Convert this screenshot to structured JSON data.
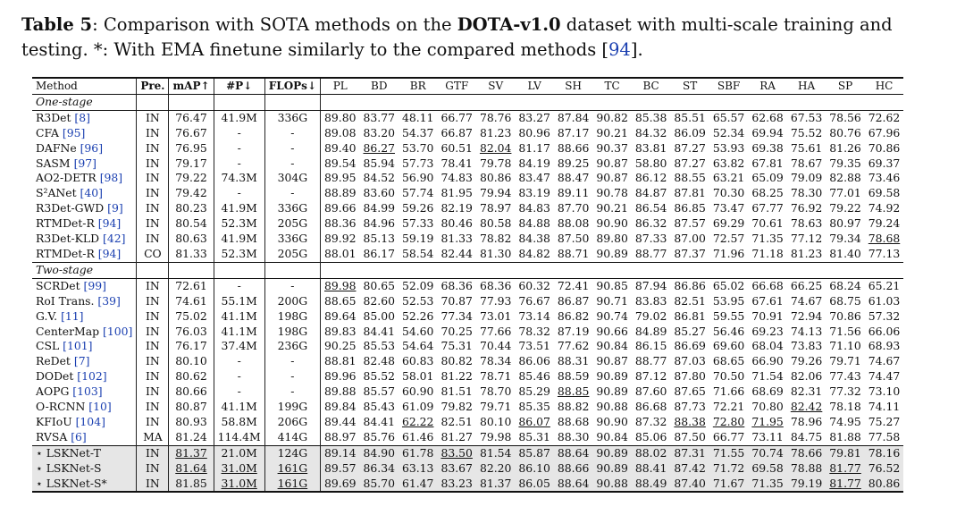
{
  "caption": {
    "label": "Table 5",
    "text_before_dataset": ": Comparison with SOTA methods on the ",
    "dataset": "DOTA-v1.0",
    "text_after_dataset": " dataset with multi-scale training and testing. *: With EMA finetune similarly to the compared methods [",
    "ref": "94",
    "text_end": "]."
  },
  "headers": [
    "Method",
    "Pre.",
    "mAP↑",
    "#P↓",
    "FLOPs↓",
    "PL",
    "BD",
    "BR",
    "GTF",
    "SV",
    "LV",
    "SH",
    "TC",
    "BC",
    "ST",
    "SBF",
    "RA",
    "HA",
    "SP",
    "HC"
  ],
  "sections": [
    {
      "title": "One-stage",
      "rows": [
        {
          "name": "R3Det ",
          "ref": "[8]",
          "pre": "IN",
          "map": "76.47",
          "params": "41.9M",
          "flops": "336G",
          "cls": [
            "89.80",
            "83.77",
            "48.11",
            "66.77",
            "78.76",
            "83.27",
            "87.84",
            "90.82",
            "85.38",
            "85.51",
            "65.57",
            "62.68",
            "67.53",
            "78.56",
            "72.62"
          ]
        },
        {
          "name": "CFA ",
          "ref": "[95]",
          "pre": "IN",
          "map": "76.67",
          "params": "-",
          "flops": "-",
          "cls": [
            "89.08",
            "83.20",
            "54.37",
            "66.87",
            "81.23",
            "80.96",
            "87.17",
            "90.21",
            "84.32",
            "86.09",
            "52.34",
            "69.94",
            "75.52",
            "80.76",
            "67.96"
          ]
        },
        {
          "name": "DAFNe ",
          "ref": "[96]",
          "pre": "IN",
          "map": "76.95",
          "params": "-",
          "flops": "-",
          "cls": [
            "89.40",
            "86.27",
            "53.70",
            "60.51",
            "82.04",
            "81.17",
            "88.66",
            "90.37",
            "83.81",
            "87.27",
            "53.93",
            "69.38",
            "75.61",
            "81.26",
            "70.86"
          ],
          "u": [
            1,
            4
          ]
        },
        {
          "name": "SASM ",
          "ref": "[97]",
          "pre": "IN",
          "map": "79.17",
          "params": "-",
          "flops": "-",
          "cls": [
            "89.54",
            "85.94",
            "57.73",
            "78.41",
            "79.78",
            "84.19",
            "89.25",
            "90.87",
            "58.80",
            "87.27",
            "63.82",
            "67.81",
            "78.67",
            "79.35",
            "69.37"
          ]
        },
        {
          "name": "AO2-DETR ",
          "ref": "[98]",
          "pre": "IN",
          "map": "79.22",
          "params": "74.3M",
          "flops": "304G",
          "cls": [
            "89.95",
            "84.52",
            "56.90",
            "74.83",
            "80.86",
            "83.47",
            "88.47",
            "90.87",
            "86.12",
            "88.55",
            "63.21",
            "65.09",
            "79.09",
            "82.88",
            "73.46"
          ],
          "b": [
            9,
            13
          ]
        },
        {
          "name": "S²ANet ",
          "ref": "[40]",
          "pre": "IN",
          "map": "79.42",
          "params": "-",
          "flops": "-",
          "cls": [
            "88.89",
            "83.60",
            "57.74",
            "81.95",
            "79.94",
            "83.19",
            "89.11",
            "90.78",
            "84.87",
            "87.81",
            "70.30",
            "68.25",
            "78.30",
            "77.01",
            "69.58"
          ],
          "b": [
            6
          ]
        },
        {
          "name": "R3Det-GWD ",
          "ref": "[9]",
          "pre": "IN",
          "map": "80.23",
          "params": "41.9M",
          "flops": "336G",
          "cls": [
            "89.66",
            "84.99",
            "59.26",
            "82.19",
            "78.97",
            "84.83",
            "87.70",
            "90.21",
            "86.54",
            "86.85",
            "73.47",
            "67.77",
            "76.92",
            "79.22",
            "74.92"
          ],
          "b": [
            10
          ]
        },
        {
          "name": "RTMDet-R ",
          "ref": "[94]",
          "pre": "IN",
          "map": "80.54",
          "params": "52.3M",
          "flops": "205G",
          "cls": [
            "88.36",
            "84.96",
            "57.33",
            "80.46",
            "80.58",
            "84.88",
            "88.08",
            "90.90",
            "86.32",
            "87.57",
            "69.29",
            "70.61",
            "78.63",
            "80.97",
            "79.24"
          ],
          "b": [
            7,
            14
          ]
        },
        {
          "name": "R3Det-KLD ",
          "ref": "[42]",
          "pre": "IN",
          "map": "80.63",
          "params": "41.9M",
          "flops": "336G",
          "cls": [
            "89.92",
            "85.13",
            "59.19",
            "81.33",
            "78.82",
            "84.38",
            "87.50",
            "89.80",
            "87.33",
            "87.00",
            "72.57",
            "71.35",
            "77.12",
            "79.34",
            "78.68"
          ],
          "u": [
            14
          ]
        },
        {
          "name": "RTMDet-R ",
          "ref": "[94]",
          "pre": "CO",
          "map": "81.33",
          "params": "52.3M",
          "flops": "205G",
          "cls": [
            "88.01",
            "86.17",
            "58.54",
            "82.44",
            "81.30",
            "84.82",
            "88.71",
            "90.89",
            "88.77",
            "87.37",
            "71.96",
            "71.18",
            "81.23",
            "81.40",
            "77.13"
          ],
          "b": [
            8
          ]
        }
      ]
    },
    {
      "title": "Two-stage",
      "rows": [
        {
          "name": "SCRDet ",
          "ref": "[99]",
          "pre": "IN",
          "map": "72.61",
          "params": "-",
          "flops": "-",
          "cls": [
            "89.98",
            "80.65",
            "52.09",
            "68.36",
            "68.36",
            "60.32",
            "72.41",
            "90.85",
            "87.94",
            "86.86",
            "65.02",
            "66.68",
            "66.25",
            "68.24",
            "65.21"
          ],
          "u": [
            0
          ]
        },
        {
          "name": "RoI Trans. ",
          "ref": "[39]",
          "pre": "IN",
          "map": "74.61",
          "params": "55.1M",
          "flops": "200G",
          "cls": [
            "88.65",
            "82.60",
            "52.53",
            "70.87",
            "77.93",
            "76.67",
            "86.87",
            "90.71",
            "83.83",
            "82.51",
            "53.95",
            "67.61",
            "74.67",
            "68.75",
            "61.03"
          ]
        },
        {
          "name": "G.V. ",
          "ref": "[11]",
          "pre": "IN",
          "map": "75.02",
          "params": "41.1M",
          "flops": "198G",
          "cls": [
            "89.64",
            "85.00",
            "52.26",
            "77.34",
            "73.01",
            "73.14",
            "86.82",
            "90.74",
            "79.02",
            "86.81",
            "59.55",
            "70.91",
            "72.94",
            "70.86",
            "57.32"
          ]
        },
        {
          "name": "CenterMap ",
          "ref": "[100]",
          "pre": "IN",
          "map": "76.03",
          "params": "41.1M",
          "flops": "198G",
          "cls": [
            "89.83",
            "84.41",
            "54.60",
            "70.25",
            "77.66",
            "78.32",
            "87.19",
            "90.66",
            "84.89",
            "85.27",
            "56.46",
            "69.23",
            "74.13",
            "71.56",
            "66.06"
          ]
        },
        {
          "name": "CSL ",
          "ref": "[101]",
          "pre": "IN",
          "map": "76.17",
          "params": "37.4M",
          "flops": "236G",
          "cls": [
            "90.25",
            "85.53",
            "54.64",
            "75.31",
            "70.44",
            "73.51",
            "77.62",
            "90.84",
            "86.15",
            "86.69",
            "69.60",
            "68.04",
            "73.83",
            "71.10",
            "68.93"
          ],
          "b": [
            0
          ]
        },
        {
          "name": "ReDet ",
          "ref": "[7]",
          "pre": "IN",
          "map": "80.10",
          "params": "-",
          "flops": "-",
          "cls": [
            "88.81",
            "82.48",
            "60.83",
            "80.82",
            "78.34",
            "86.06",
            "88.31",
            "90.87",
            "88.77",
            "87.03",
            "68.65",
            "66.90",
            "79.26",
            "79.71",
            "74.67"
          ],
          "b": [
            8
          ]
        },
        {
          "name": "DODet ",
          "ref": "[102]",
          "pre": "IN",
          "map": "80.62",
          "params": "-",
          "flops": "-",
          "cls": [
            "89.96",
            "85.52",
            "58.01",
            "81.22",
            "78.71",
            "85.46",
            "88.59",
            "90.89",
            "87.12",
            "87.80",
            "70.50",
            "71.54",
            "82.06",
            "77.43",
            "74.47"
          ]
        },
        {
          "name": "AOPG ",
          "ref": "[103]",
          "pre": "IN",
          "map": "80.66",
          "params": "-",
          "flops": "-",
          "cls": [
            "89.88",
            "85.57",
            "60.90",
            "81.51",
            "78.70",
            "85.29",
            "88.85",
            "90.89",
            "87.60",
            "87.65",
            "71.66",
            "68.69",
            "82.31",
            "77.32",
            "73.10"
          ],
          "u": [
            6
          ]
        },
        {
          "name": "O-RCNN ",
          "ref": "[10]",
          "pre": "IN",
          "map": "80.87",
          "params": "41.1M",
          "flops": "199G",
          "cls": [
            "89.84",
            "85.43",
            "61.09",
            "79.82",
            "79.71",
            "85.35",
            "88.82",
            "90.88",
            "86.68",
            "87.73",
            "72.21",
            "70.80",
            "82.42",
            "78.18",
            "74.11"
          ],
          "u": [
            12
          ]
        },
        {
          "name": "KFIoU ",
          "ref": "[104]",
          "pre": "IN",
          "map": "80.93",
          "params": "58.8M",
          "flops": "206G",
          "cls": [
            "89.44",
            "84.41",
            "62.22",
            "82.51",
            "80.10",
            "86.07",
            "88.68",
            "90.90",
            "87.32",
            "88.38",
            "72.80",
            "71.95",
            "78.96",
            "74.95",
            "75.27"
          ],
          "u": [
            2,
            5,
            9,
            10,
            11
          ],
          "b": [
            7
          ]
        },
        {
          "name": "RVSA ",
          "ref": "[6]",
          "pre": "MA",
          "map": "81.24",
          "params": "114.4M",
          "flops": "414G",
          "cls": [
            "88.97",
            "85.76",
            "61.46",
            "81.27",
            "79.98",
            "85.31",
            "88.30",
            "90.84",
            "85.06",
            "87.50",
            "66.77",
            "73.11",
            "84.75",
            "81.88",
            "77.58"
          ],
          "b": [
            11,
            12
          ]
        }
      ]
    }
  ],
  "ours": [
    {
      "name": "⋆ LSKNet-T",
      "pre": "IN",
      "map": "81.37",
      "params": "21.0M",
      "flops": "124G",
      "mapStyle": "u",
      "paramStyle": "b",
      "flopStyle": "b",
      "cls": [
        "89.14",
        "84.90",
        "61.78",
        "83.50",
        "81.54",
        "85.87",
        "88.64",
        "90.89",
        "88.02",
        "87.31",
        "71.55",
        "70.74",
        "78.66",
        "79.81",
        "78.16"
      ],
      "u": [
        3
      ]
    },
    {
      "name": "⋆ LSKNet-S",
      "pre": "IN",
      "map": "81.64",
      "params": "31.0M",
      "flops": "161G",
      "mapStyle": "u",
      "paramStyle": "u",
      "flopStyle": "u",
      "cls": [
        "89.57",
        "86.34",
        "63.13",
        "83.67",
        "82.20",
        "86.10",
        "88.66",
        "90.89",
        "88.41",
        "87.42",
        "71.72",
        "69.58",
        "78.88",
        "81.77",
        "76.52"
      ],
      "b": [
        1,
        2,
        3,
        4,
        5
      ],
      "u": [
        13
      ]
    },
    {
      "name": "⋆ LSKNet-S*",
      "pre": "IN",
      "map": "81.85",
      "params": "31.0M",
      "flops": "161G",
      "mapStyle": "b",
      "paramStyle": "u",
      "flopStyle": "u",
      "cls": [
        "89.69",
        "85.70",
        "61.47",
        "83.23",
        "81.37",
        "86.05",
        "88.64",
        "90.88",
        "88.49",
        "87.40",
        "71.67",
        "71.35",
        "79.19",
        "81.77",
        "80.86"
      ],
      "u": [
        13
      ],
      "b": [
        14
      ]
    }
  ]
}
